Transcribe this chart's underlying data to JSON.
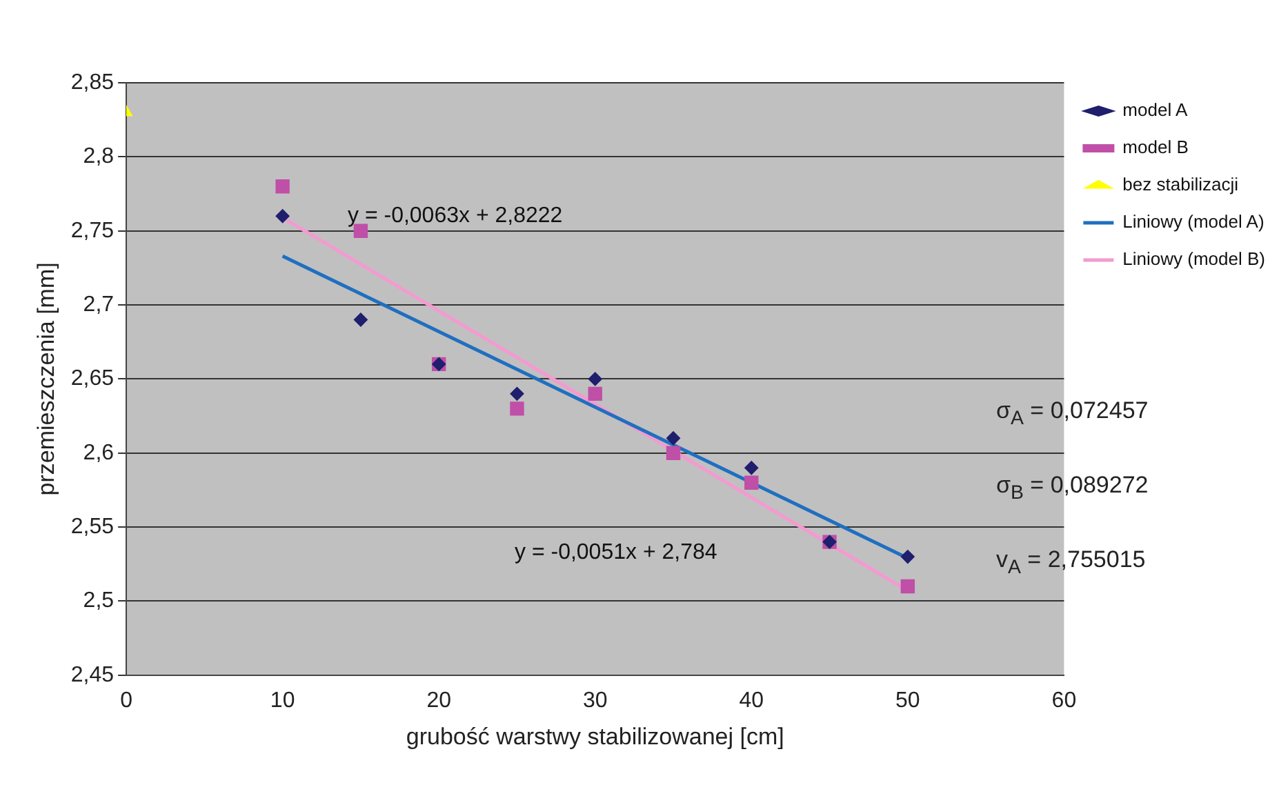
{
  "chart_data": {
    "type": "scatter",
    "xlabel": "grubość warstwy stabilizowanej [cm]",
    "ylabel": "przemieszczenia [mm]",
    "xlim": [
      0,
      60
    ],
    "xticks": [
      0,
      10,
      20,
      30,
      40,
      50,
      60
    ],
    "ylim": [
      2.45,
      2.85
    ],
    "yticks": [
      {
        "value": 2.45,
        "label": "2,45"
      },
      {
        "value": 2.5,
        "label": "2,5"
      },
      {
        "value": 2.55,
        "label": "2,55"
      },
      {
        "value": 2.6,
        "label": "2,6"
      },
      {
        "value": 2.65,
        "label": "2,65"
      },
      {
        "value": 2.7,
        "label": "2,7"
      },
      {
        "value": 2.75,
        "label": "2,75"
      },
      {
        "value": 2.8,
        "label": "2,8"
      },
      {
        "value": 2.85,
        "label": "2,85"
      }
    ],
    "grid": "y",
    "legend": "right",
    "series": [
      {
        "name": "model A",
        "type": "scatter",
        "marker": "diamond",
        "color": "#1f1f6e",
        "x": [
          10,
          15,
          20,
          25,
          30,
          35,
          40,
          45,
          50
        ],
        "values": [
          2.76,
          2.69,
          2.66,
          2.64,
          2.65,
          2.61,
          2.59,
          2.54,
          2.53
        ]
      },
      {
        "name": "model B",
        "type": "scatter",
        "marker": "square",
        "color": "#c04fa8",
        "x": [
          10,
          15,
          20,
          25,
          30,
          35,
          40,
          45,
          50
        ],
        "values": [
          2.78,
          2.75,
          2.66,
          2.63,
          2.64,
          2.6,
          2.58,
          2.54,
          2.51
        ]
      },
      {
        "name": "bez stabilizacji",
        "type": "scatter",
        "marker": "triangle",
        "color": "#ffff00",
        "x": [
          0
        ],
        "values": [
          2.83
        ]
      },
      {
        "name": "Liniowy (model A)",
        "type": "line",
        "marker": "none",
        "line_style": "solid",
        "color": "#1f6fc0",
        "x": [
          10,
          50
        ],
        "values": [
          2.733,
          2.529
        ]
      },
      {
        "name": "Liniowy (model B)",
        "type": "line",
        "marker": "none",
        "line_style": "solid",
        "color": "#f49ad0",
        "x": [
          10,
          50
        ],
        "values": [
          2.759,
          2.507
        ]
      }
    ],
    "annotations": [
      "y = -0,0063x + 2,8222",
      "y = -0,0051x + 2,784",
      "σ$_{A}$ = 0,072457",
      "σ$_{B}$ = 0,089272",
      "v$_{A}$ = 2,755015"
    ]
  }
}
